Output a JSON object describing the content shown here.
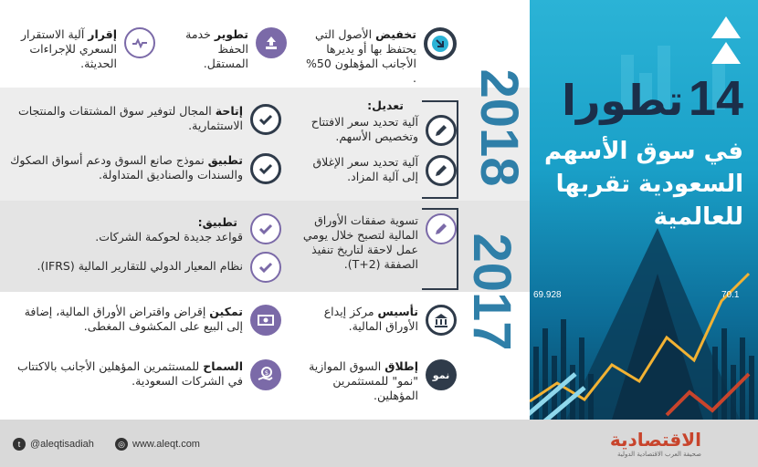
{
  "title": {
    "number": "14",
    "word": "تطورا",
    "line1": "في سوق الأسهم",
    "line2": "السعودية تقربها",
    "line3": "للعالمية"
  },
  "hero_ticks": {
    "left": "69.928",
    "right": "70.1"
  },
  "years": {
    "first": "2018",
    "second": "2017"
  },
  "top_row": [
    {
      "bold": "تخفيض",
      "text": " الأصول التي يحتفظ بها أو يديرها الأجانب المؤهلون 50% .",
      "icon": "arrow-right-circle-icon"
    },
    {
      "bold": "تطوير",
      "text": " خدمة الحفظ المستقل.",
      "icon": "upload-arrow-icon"
    },
    {
      "bold": "إقرار",
      "text": " آلية الاستقرار السعري للإجراءات الحديثة.",
      "icon": "pulse-arrows-icon"
    }
  ],
  "amend": {
    "header": "تعديل:",
    "items": [
      {
        "text": "آلية تحديد سعر الافتتاح وتخصيص الأسهم."
      },
      {
        "text": "آلية تحديد سعر الإغلاق إلى آلية المزاد."
      }
    ]
  },
  "enable_items": [
    {
      "bold": "إتاحة",
      "text": " المجال لتوفير سوق المشتقات والمنتجات الاستثمارية."
    },
    {
      "bold": "تطبيق",
      "text": " نموذج صانع السوق ودعم أسواق الصكوك والسندات والصناديق المتداولة."
    }
  ],
  "settlement": {
    "text": "تسوية صفقات الأوراق المالية لتصبح خلال يومي عمل لاحقة لتاريخ تنفيذ الصفقة (T+2)."
  },
  "apply": {
    "header": "تطبيق:",
    "items": [
      {
        "text": "قواعد جديدة لحوكمة الشركات."
      },
      {
        "text": "نظام المعيار الدولي للتقارير المالية (IFRS)."
      }
    ]
  },
  "bottom_items": [
    {
      "bold": "تأسيس",
      "text": " مركز إيداع الأوراق المالية.",
      "icon": "bank-building-icon"
    },
    {
      "bold": "تمكين",
      "text": " إقراض واقتراض الأوراق المالية، إضافة إلى البيع على المكشوف المغطى.",
      "icon": "cash-icon"
    },
    {
      "bold": "إطلاق",
      "text": " السوق الموازية \"نمو\" للمستثمرين المؤهلين.",
      "icon": "nomu-icon",
      "icon_label": "نمو"
    },
    {
      "bold": "السماح",
      "text": " للمستثمرين المؤهلين الأجانب بالاكتتاب في الشركات السعودية.",
      "icon": "money-hand-icon"
    }
  ],
  "footer": {
    "twitter": "@aleqtisadiah",
    "web": "www.aleqt.com",
    "logo": "الاقتصادية",
    "logo_sub": "صحيفة العرب الاقتصادية الدولية"
  },
  "colors": {
    "dark": "#2f3b4a",
    "purple": "#7b6aa8",
    "accent_blue": "#2f7fa8",
    "hero_top": "#2bb3d6"
  }
}
